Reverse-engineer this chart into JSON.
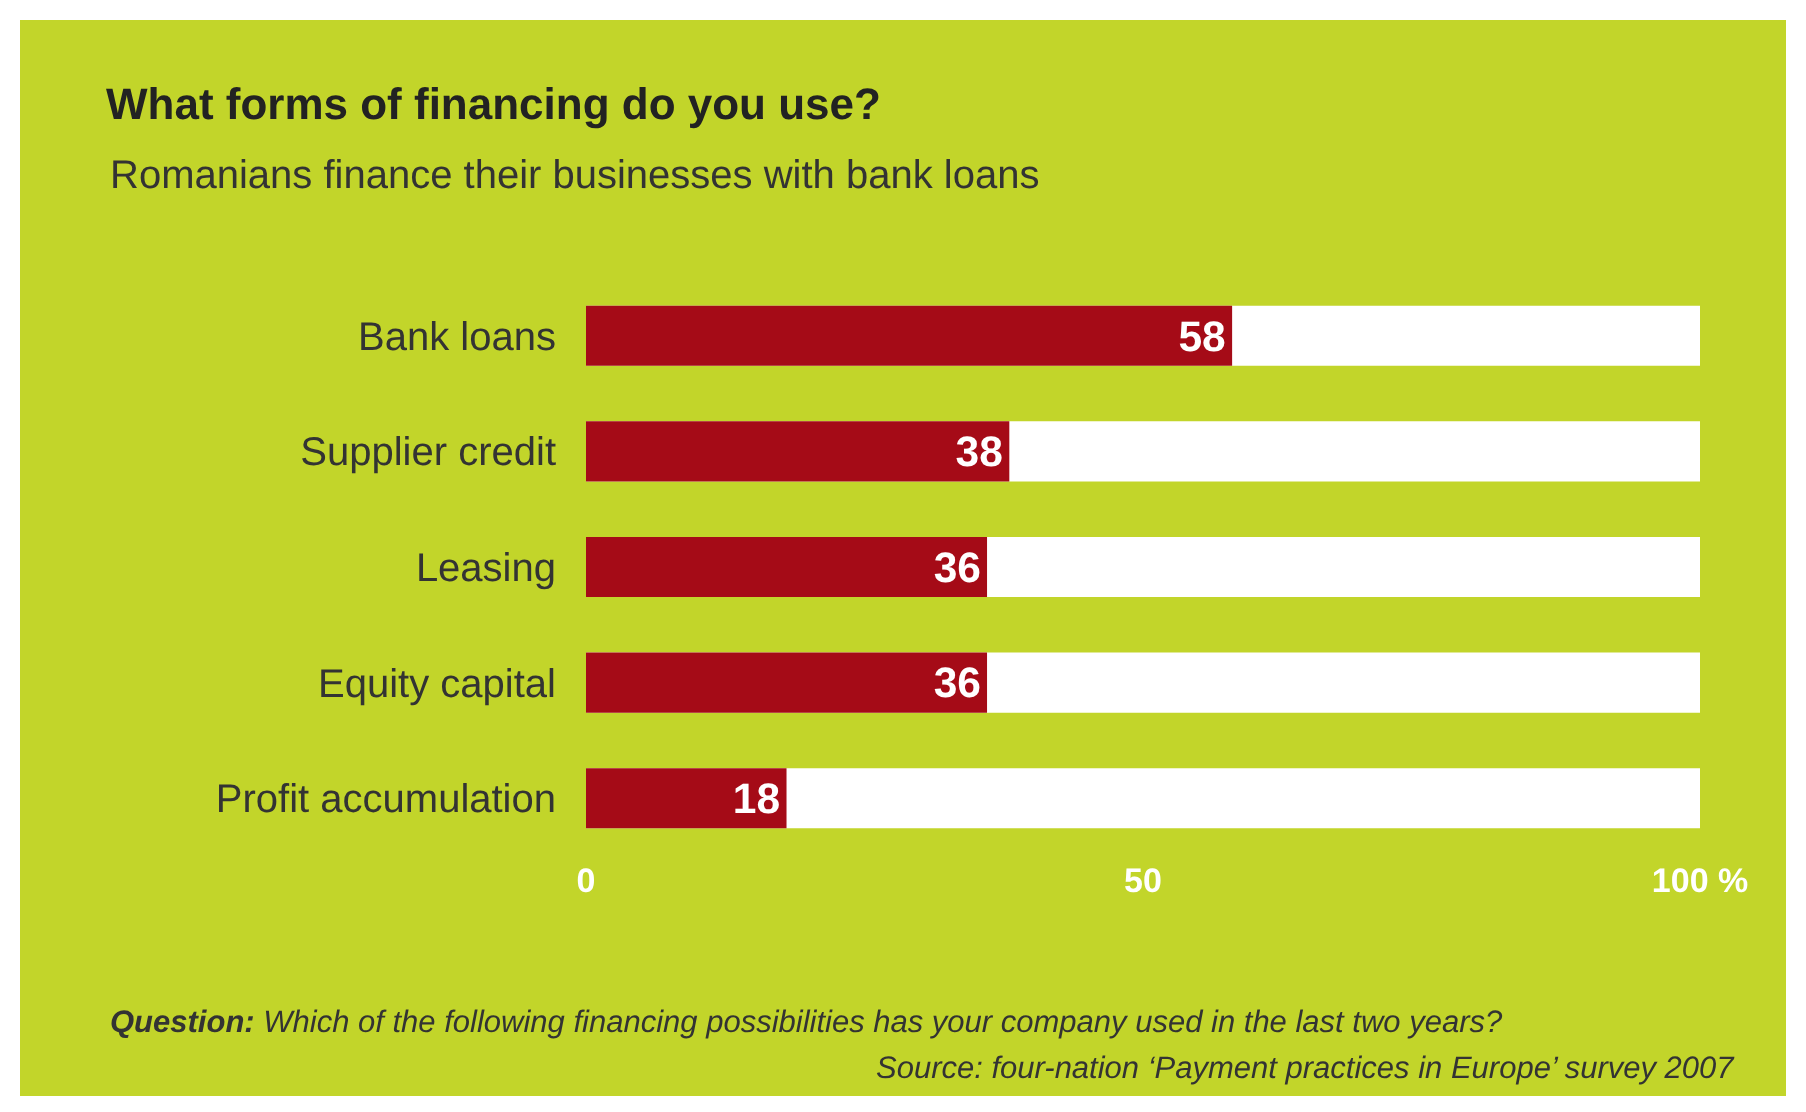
{
  "chart_data": {
    "type": "bar",
    "orientation": "horizontal",
    "title": "What forms of financing do you use?",
    "subtitle": "Romanians finance their businesses with bank loans",
    "categories": [
      "Bank loans",
      "Supplier credit",
      "Leasing",
      "Equity capital",
      "Profit accumulation"
    ],
    "values": [
      58,
      38,
      36,
      36,
      18
    ],
    "color": "#a50b17",
    "data_labels": true,
    "xlim": [
      0,
      100
    ],
    "xticks": [
      0,
      50,
      {
        "value": 100,
        "label": "100 %"
      }
    ],
    "grid": false,
    "legend": false,
    "annotations": [
      "Question: Which of the following financing possibilities has your company used in the last two years?",
      "Source: four-nation ‘Payment practices in Europe’ survey 2007"
    ]
  }
}
